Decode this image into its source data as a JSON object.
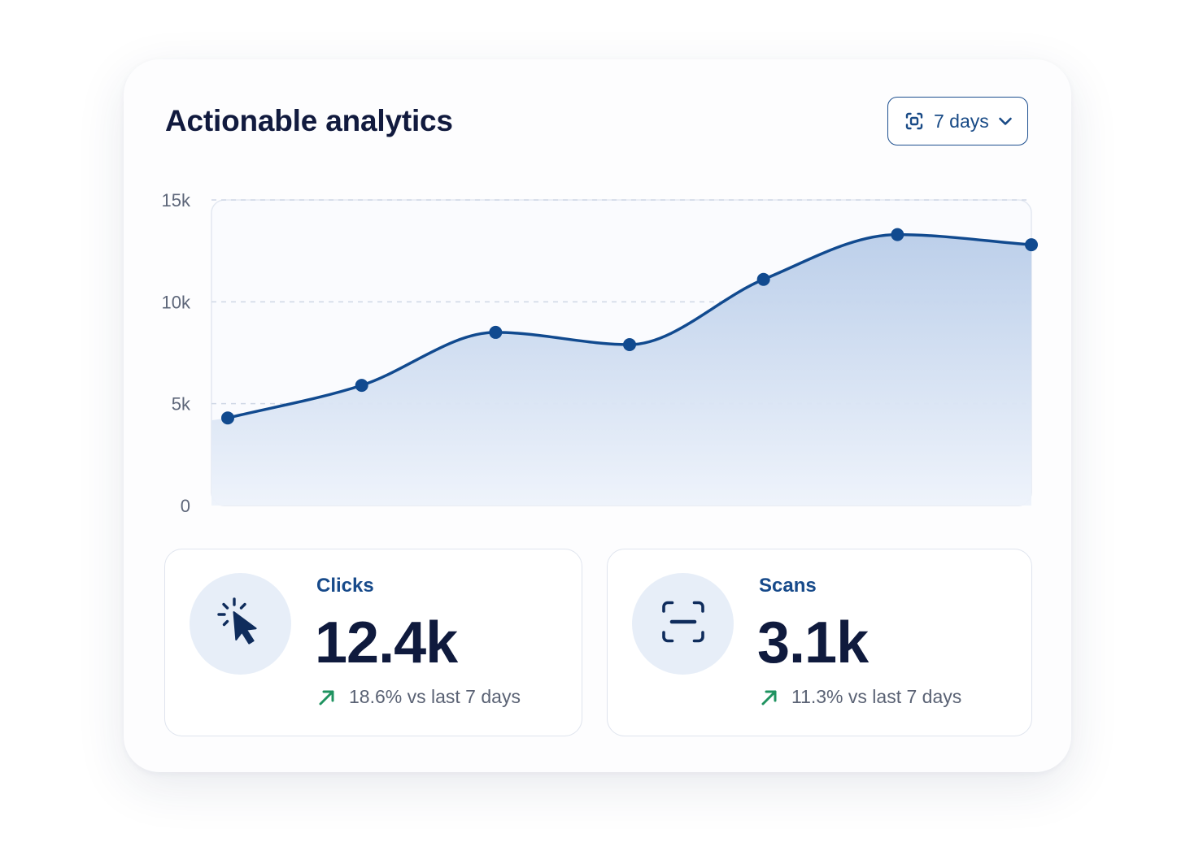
{
  "header": {
    "title": "Actionable analytics",
    "range_label": "7 days",
    "range_icon": "calendar-scan-icon",
    "dropdown_icon": "chevron-down-icon"
  },
  "chart_data": {
    "type": "area",
    "title": "",
    "xlabel": "",
    "ylabel": "",
    "ylim": [
      0,
      15000
    ],
    "yticks": [
      {
        "value": 0,
        "label": "0"
      },
      {
        "value": 5000,
        "label": "5k"
      },
      {
        "value": 10000,
        "label": "10k"
      },
      {
        "value": 15000,
        "label": "15k"
      }
    ],
    "grid": true,
    "x": [
      1,
      2,
      3,
      4,
      5,
      6,
      7
    ],
    "series": [
      {
        "values": [
          4300,
          5900,
          8500,
          7900,
          11100,
          13300,
          12800
        ]
      }
    ]
  },
  "stats": {
    "clicks": {
      "label": "Clicks",
      "value": "12.4k",
      "change": "18.6% vs last 7 days",
      "icon": "cursor-click-icon",
      "trend_icon": "arrow-up-right-icon"
    },
    "scans": {
      "label": "Scans",
      "value": "3.1k",
      "change": "11.3% vs last 7 days",
      "icon": "scan-icon",
      "trend_icon": "arrow-up-right-icon"
    }
  },
  "colors": {
    "accent": "#114a8f",
    "title": "#111a3e",
    "positive": "#1f9360",
    "area_top": "#b9cde9",
    "area_bottom": "#eef3fb"
  }
}
